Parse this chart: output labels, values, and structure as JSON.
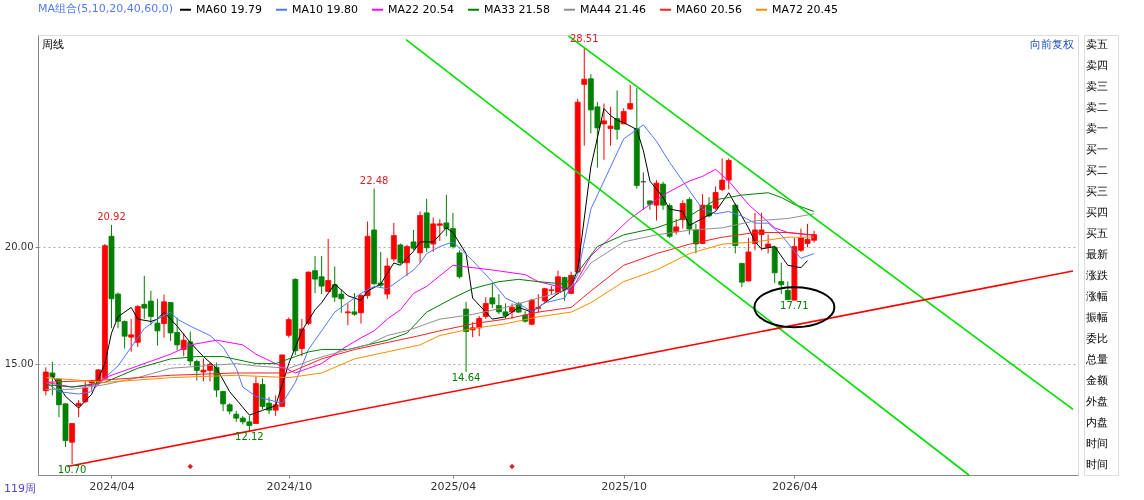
{
  "chart_data": [
    {
      "type": "candlestick",
      "x": [
        "2024-01-26",
        "2024-02-02",
        "2024-02-09",
        "2024-02-16",
        "2024-02-23",
        "2024-03-01",
        "2024-03-08",
        "2024-03-15",
        "2024-03-22",
        "2024-03-29",
        "2024-04-05",
        "2024-04-12",
        "2024-04-19",
        "2024-04-26",
        "2024-05-03",
        "2024-05-10",
        "2024-05-17",
        "2024-05-24",
        "2024-05-31",
        "2024-06-07",
        "2024-06-14",
        "2024-06-21",
        "2024-06-28",
        "2024-07-05",
        "2024-07-12",
        "2024-07-19",
        "2024-07-26",
        "2024-08-02",
        "2024-08-09",
        "2024-08-16",
        "2024-08-23",
        "2024-08-30",
        "2024-09-06",
        "2024-09-13",
        "2024-09-20",
        "2024-09-27",
        "2024-10-04",
        "2024-10-11",
        "2024-10-18",
        "2024-10-25",
        "2024-11-01",
        "2024-11-08",
        "2024-11-15",
        "2024-11-22",
        "2024-11-29",
        "2024-12-06",
        "2024-12-13",
        "2024-12-20",
        "2024-12-27",
        "2025-01-03",
        "2025-01-10",
        "2025-01-17",
        "2025-01-24",
        "2025-01-31",
        "2025-02-07",
        "2025-02-14",
        "2025-02-21",
        "2025-02-28",
        "2025-03-07",
        "2025-03-14",
        "2025-03-21",
        "2025-03-28",
        "2025-04-04",
        "2025-04-11",
        "2025-04-18",
        "2025-04-25",
        "2025-05-02",
        "2025-05-09",
        "2025-05-16",
        "2025-05-23",
        "2025-05-30",
        "2025-06-06",
        "2025-06-13",
        "2025-06-20",
        "2025-06-27",
        "2025-07-04",
        "2025-07-11",
        "2025-07-18",
        "2025-07-25",
        "2025-08-01",
        "2025-08-08",
        "2025-08-15",
        "2025-08-22",
        "2025-08-29",
        "2025-09-05",
        "2025-09-12",
        "2025-09-19",
        "2025-09-26",
        "2025-10-03",
        "2025-10-10",
        "2025-10-17",
        "2025-10-24",
        "2025-10-31",
        "2025-11-07",
        "2025-11-14",
        "2025-11-21",
        "2025-11-28",
        "2025-12-05",
        "2025-12-12",
        "2025-12-19",
        "2025-12-26",
        "2026-01-02",
        "2026-01-09",
        "2026-01-16",
        "2026-01-23",
        "2026-01-30",
        "2026-02-06",
        "2026-02-13",
        "2026-02-20",
        "2026-02-27",
        "2026-03-06",
        "2026-03-13",
        "2026-03-20",
        "2026-03-27",
        "2026-04-03",
        "2026-04-10",
        "2026-04-17",
        "2026-04-24"
      ],
      "ohlc": [
        [
          13.84,
          14.84,
          13.64,
          14.64
        ],
        [
          14.6,
          15.07,
          13.64,
          14.44
        ],
        [
          14.33,
          14.37,
          12.71,
          13.24
        ],
        [
          13.28,
          13.3,
          11.44,
          11.71
        ],
        [
          11.64,
          12.44,
          10.7,
          12.44
        ],
        [
          13.2,
          13.44,
          12.71,
          13.3
        ],
        [
          13.37,
          14.24,
          13.31,
          13.95
        ],
        [
          14.17,
          14.31,
          13.84,
          14.24
        ],
        [
          14.21,
          14.77,
          14.17,
          14.73
        ],
        [
          14.37,
          20.11,
          14.31,
          20.04
        ],
        [
          20.44,
          20.92,
          16.51,
          17.77
        ],
        [
          17.97,
          18.04,
          16.51,
          16.81
        ],
        [
          16.8,
          16.84,
          15.64,
          16.17
        ],
        [
          16.13,
          16.91,
          15.51,
          16.23
        ],
        [
          15.91,
          17.5,
          15.71,
          17.44
        ],
        [
          17.53,
          18.75,
          16.91,
          17.37
        ],
        [
          17.67,
          18.11,
          16.64,
          17.01
        ],
        [
          16.73,
          17.77,
          15.77,
          16.4
        ],
        [
          16.71,
          17.95,
          16.11,
          17.64
        ],
        [
          17.61,
          17.63,
          15.97,
          16.31
        ],
        [
          16.33,
          16.97,
          15.57,
          15.8
        ],
        [
          15.6,
          16.31,
          15.31,
          16.0
        ],
        [
          15.93,
          16.37,
          14.91,
          15.11
        ],
        [
          15.09,
          15.17,
          14.27,
          14.71
        ],
        [
          14.64,
          15.21,
          14.24,
          14.72
        ],
        [
          14.71,
          15.04,
          14.24,
          14.97
        ],
        [
          14.84,
          15.04,
          13.57,
          13.87
        ],
        [
          13.81,
          13.84,
          12.97,
          13.28
        ],
        [
          13.24,
          13.31,
          12.84,
          12.97
        ],
        [
          12.84,
          12.97,
          12.51,
          12.67
        ],
        [
          12.67,
          12.77,
          12.4,
          12.51
        ],
        [
          12.51,
          12.77,
          12.12,
          12.35
        ],
        [
          12.44,
          14.44,
          12.44,
          14.15
        ],
        [
          14.11,
          14.37,
          13.04,
          13.17
        ],
        [
          13.31,
          13.57,
          12.84,
          13.01
        ],
        [
          13.01,
          13.64,
          12.77,
          13.24
        ],
        [
          13.17,
          15.37,
          13.17,
          15.37
        ],
        [
          16.21,
          16.97,
          16.11,
          16.88
        ],
        [
          18.6,
          18.64,
          15.37,
          15.55
        ],
        [
          15.64,
          16.91,
          15.31,
          16.48
        ],
        [
          16.71,
          18.93,
          16.64,
          18.91
        ],
        [
          18.97,
          19.6,
          18.01,
          18.61
        ],
        [
          18.71,
          19.6,
          17.97,
          18.31
        ],
        [
          18.08,
          20.33,
          18.08,
          18.55
        ],
        [
          18.37,
          19.15,
          17.64,
          17.84
        ],
        [
          17.97,
          18.17,
          17.17,
          17.77
        ],
        [
          17.17,
          17.57,
          16.64,
          17.21
        ],
        [
          17.21,
          18.01,
          17.04,
          17.11
        ],
        [
          17.17,
          17.97,
          16.71,
          17.91
        ],
        [
          17.91,
          21.07,
          17.77,
          20.44
        ],
        [
          20.71,
          22.48,
          18.37,
          18.41
        ],
        [
          18.44,
          19.77,
          18.24,
          18.35
        ],
        [
          17.97,
          19.51,
          17.75,
          19.17
        ],
        [
          19.47,
          21.01,
          19.37,
          20.47
        ],
        [
          20.07,
          20.13,
          19.24,
          19.31
        ],
        [
          19.31,
          20.08,
          18.75,
          20.0
        ],
        [
          20.2,
          20.71,
          19.84,
          19.93
        ],
        [
          19.73,
          21.5,
          19.31,
          21.33
        ],
        [
          21.44,
          22.04,
          19.77,
          19.95
        ],
        [
          20.11,
          21.24,
          19.77,
          20.97
        ],
        [
          20.91,
          21.17,
          20.24,
          20.97
        ],
        [
          21.01,
          22.21,
          20.44,
          20.77
        ],
        [
          20.77,
          21.44,
          19.91,
          20.0
        ],
        [
          19.73,
          19.84,
          18.64,
          18.71
        ],
        [
          17.33,
          17.64,
          14.64,
          16.37
        ],
        [
          16.44,
          16.77,
          16.13,
          16.53
        ],
        [
          16.53,
          17.04,
          16.17,
          16.93
        ],
        [
          17.01,
          17.84,
          16.91,
          17.57
        ],
        [
          17.81,
          18.44,
          17.37,
          17.55
        ],
        [
          17.48,
          17.97,
          17.11,
          17.21
        ],
        [
          17.21,
          17.57,
          16.91,
          17.04
        ],
        [
          17.21,
          17.57,
          16.91,
          17.41
        ],
        [
          17.57,
          17.64,
          17.17,
          17.2
        ],
        [
          17.07,
          17.24,
          16.75,
          16.81
        ],
        [
          16.68,
          17.77,
          16.64,
          17.71
        ],
        [
          17.36,
          17.97,
          17.17,
          17.4
        ],
        [
          17.68,
          18.24,
          17.57,
          18.2
        ],
        [
          18.12,
          18.31,
          17.95,
          18.15
        ],
        [
          18.04,
          18.97,
          17.97,
          18.71
        ],
        [
          18.68,
          18.71,
          17.68,
          18.17
        ],
        [
          18.0,
          18.93,
          17.97,
          18.77
        ],
        [
          18.91,
          26.31,
          18.84,
          26.17
        ],
        [
          26.93,
          28.51,
          24.31,
          27.15
        ],
        [
          27.17,
          27.37,
          24.84,
          25.84
        ],
        [
          25.97,
          26.17,
          23.37,
          25.07
        ],
        [
          25.24,
          26.11,
          23.71,
          25.37
        ],
        [
          25.04,
          25.97,
          24.31,
          25.15
        ],
        [
          25.47,
          26.67,
          24.57,
          25.01
        ],
        [
          25.24,
          25.91,
          25.24,
          25.77
        ],
        [
          25.88,
          26.91,
          25.84,
          26.11
        ],
        [
          25.04,
          26.77,
          22.48,
          22.61
        ],
        [
          22.77,
          23.17,
          21.57,
          22.77
        ],
        [
          21.95,
          21.97,
          21.57,
          21.81
        ],
        [
          21.77,
          22.84,
          21.11,
          22.71
        ],
        [
          22.67,
          22.77,
          21.57,
          21.77
        ],
        [
          21.75,
          21.84,
          20.37,
          20.44
        ],
        [
          20.64,
          21.17,
          20.51,
          20.84
        ],
        [
          21.15,
          21.97,
          20.77,
          21.84
        ],
        [
          22.01,
          22.11,
          20.51,
          20.75
        ],
        [
          20.71,
          20.97,
          19.71,
          20.11
        ],
        [
          20.13,
          22.24,
          20.11,
          21.77
        ],
        [
          21.75,
          22.11,
          21.24,
          21.31
        ],
        [
          21.64,
          22.57,
          21.57,
          22.31
        ],
        [
          22.44,
          23.77,
          22.37,
          22.84
        ],
        [
          22.84,
          23.77,
          22.44,
          23.68
        ],
        [
          21.77,
          21.84,
          19.71,
          20.04
        ],
        [
          19.28,
          19.31,
          18.27,
          18.48
        ],
        [
          18.53,
          20.37,
          18.51,
          19.77
        ],
        [
          20.13,
          21.44,
          19.84,
          20.71
        ],
        [
          20.51,
          21.44,
          19.84,
          20.71
        ],
        [
          19.97,
          20.51,
          19.71,
          20.11
        ],
        [
          19.97,
          20.04,
          18.44,
          18.88
        ],
        [
          18.51,
          19.31,
          17.97,
          18.37
        ],
        [
          18.13,
          18.51,
          17.72,
          17.73
        ],
        [
          17.71,
          20.37,
          17.71,
          20.0
        ],
        [
          19.84,
          20.77,
          19.77,
          20.37
        ],
        [
          20.13,
          20.97,
          19.97,
          20.31
        ],
        [
          20.27,
          20.67,
          20.17,
          20.51
        ]
      ],
      "colors": [
        "#ff0000",
        "#008000",
        "#008000",
        "#008000",
        "#ff0000",
        "#ff0000",
        "#ff0000",
        "#ff0000",
        "#ff0000",
        "#ff0000",
        "#008000",
        "#008000",
        "#008000",
        "#ff0000",
        "#ff0000",
        "#008000",
        "#008000",
        "#008000",
        "#ff0000",
        "#008000",
        "#008000",
        "#ff0000",
        "#008000",
        "#008000",
        "#ff0000",
        "#ff0000",
        "#008000",
        "#008000",
        "#008000",
        "#008000",
        "#008000",
        "#008000",
        "#ff0000",
        "#008000",
        "#008000",
        "#ff0000",
        "#ff0000",
        "#ff0000",
        "#008000",
        "#ff0000",
        "#ff0000",
        "#008000",
        "#008000",
        "#ff0000",
        "#008000",
        "#008000",
        "#ff0000",
        "#008000",
        "#ff0000",
        "#ff0000",
        "#008000",
        "#008000",
        "#ff0000",
        "#ff0000",
        "#008000",
        "#ff0000",
        "#008000",
        "#ff0000",
        "#008000",
        "#ff0000",
        "#ff0000",
        "#008000",
        "#008000",
        "#008000",
        "#008000",
        "#ff0000",
        "#ff0000",
        "#ff0000",
        "#008000",
        "#008000",
        "#008000",
        "#ff0000",
        "#008000",
        "#008000",
        "#ff0000",
        "#ff0000",
        "#ff0000",
        "#ff0000",
        "#ff0000",
        "#008000",
        "#ff0000",
        "#ff0000",
        "#ff0000",
        "#008000",
        "#008000",
        "#ff0000",
        "#ff0000",
        "#008000",
        "#ff0000",
        "#ff0000",
        "#008000",
        "#404040",
        "#008000",
        "#ff0000",
        "#008000",
        "#008000",
        "#ff0000",
        "#ff0000",
        "#008000",
        "#008000",
        "#ff0000",
        "#008000",
        "#ff0000",
        "#ff0000",
        "#ff0000",
        "#008000",
        "#008000",
        "#ff0000",
        "#ff0000",
        "#ff0000",
        "#ff0000",
        "#008000",
        "#008000",
        "#008000",
        "#ff0000",
        "#ff0000",
        "#ff0000",
        "#ff0000"
      ],
      "series": [
        {
          "name": "MA60 19.79",
          "type": "line",
          "color": "#000000",
          "x": [
            "2024-02-02",
            "2024-02-16",
            "2024-03-01",
            "2024-03-15",
            "2024-03-29",
            "2024-04-05",
            "2024-04-12",
            "2024-04-26",
            "2024-05-03",
            "2024-05-17",
            "2024-05-24",
            "2024-05-31",
            "2024-06-14",
            "2024-06-28",
            "2024-07-12",
            "2024-07-26",
            "2024-08-02",
            "2024-08-09",
            "2024-08-30",
            "2024-09-13",
            "2024-09-27",
            "2024-10-11",
            "2024-10-25",
            "2024-11-08",
            "2024-11-15",
            "2024-11-29",
            "2024-12-13",
            "2024-12-27",
            "2025-01-03",
            "2025-01-17",
            "2025-01-31",
            "2025-02-07",
            "2025-02-21",
            "2025-02-28",
            "2025-03-14",
            "2025-03-28",
            "2025-04-04",
            "2025-04-18",
            "2025-04-25",
            "2025-05-16",
            "2025-05-30",
            "2025-06-13",
            "2025-06-27",
            "2025-07-11",
            "2025-07-25",
            "2025-08-08",
            "2025-08-15",
            "2025-08-29",
            "2025-09-12",
            "2025-09-19",
            "2025-09-26",
            "2025-10-03",
            "2025-10-17",
            "2025-10-24",
            "2025-10-31",
            "2025-11-14",
            "2025-11-21",
            "2025-12-05",
            "2025-12-12",
            "2025-12-26",
            "2026-01-09",
            "2026-01-23",
            "2026-01-30",
            "2026-02-13",
            "2026-02-20",
            "2026-02-27",
            "2026-03-13",
            "2026-03-27",
            "2026-04-10",
            "2026-04-17"
          ],
          "values": [
            14.5,
            13.6,
            13.1,
            13.7,
            15.0,
            16.3,
            17.0,
            17.4,
            16.9,
            16.8,
            16.9,
            17.2,
            16.6,
            15.9,
            15.3,
            14.8,
            14.3,
            13.8,
            12.8,
            13.0,
            13.2,
            15.0,
            16.4,
            17.3,
            17.6,
            18.4,
            17.9,
            17.7,
            18.1,
            18.4,
            19.3,
            19.2,
            19.8,
            20.2,
            20.2,
            20.8,
            20.6,
            19.7,
            17.8,
            16.9,
            17.0,
            17.4,
            17.2,
            17.6,
            18.0,
            18.3,
            19.0,
            23.4,
            25.9,
            25.6,
            25.4,
            25.3,
            25.0,
            24.1,
            22.8,
            22.1,
            21.6,
            21.5,
            20.9,
            21.2,
            21.5,
            22.3,
            21.8,
            20.8,
            20.2,
            19.9,
            20.0,
            19.2,
            19.1,
            19.4
          ]
        },
        {
          "name": "MA10 19.80",
          "type": "line",
          "color": "#4f79ff",
          "x": [
            "2024-01-26",
            "2024-02-09",
            "2024-03-01",
            "2024-03-15",
            "2024-03-29",
            "2024-04-12",
            "2024-04-26",
            "2024-05-10",
            "2024-05-24",
            "2024-06-07",
            "2024-06-14",
            "2024-06-28",
            "2024-07-19",
            "2024-08-02",
            "2024-08-16",
            "2024-08-23",
            "2024-09-06",
            "2024-10-04",
            "2024-10-18",
            "2024-11-01",
            "2024-11-15",
            "2024-11-29",
            "2024-12-13",
            "2024-12-27",
            "2025-01-10",
            "2025-01-24",
            "2025-02-07",
            "2025-02-21",
            "2025-02-28",
            "2025-03-07",
            "2025-03-21",
            "2025-04-04",
            "2025-04-25",
            "2025-05-16",
            "2025-05-30",
            "2025-06-20",
            "2025-06-27",
            "2025-07-11",
            "2025-08-01",
            "2025-08-15",
            "2025-08-29",
            "2025-09-19",
            "2025-10-03",
            "2025-10-24",
            "2025-11-07",
            "2025-11-21",
            "2025-12-12",
            "2025-12-26",
            "2026-01-09",
            "2026-01-23",
            "2026-02-06",
            "2026-02-20",
            "2026-03-06",
            "2026-03-20",
            "2026-04-03",
            "2026-04-10",
            "2026-04-24"
          ],
          "values": [
            14.2,
            13.8,
            13.7,
            13.8,
            14.4,
            14.9,
            15.7,
            16.5,
            16.9,
            17.2,
            16.9,
            16.6,
            16.2,
            15.7,
            14.8,
            14.0,
            13.6,
            13.3,
            14.2,
            15.6,
            16.4,
            17.2,
            17.6,
            18.0,
            18.3,
            18.2,
            18.6,
            19.0,
            19.3,
            19.7,
            20.0,
            20.2,
            19.4,
            18.5,
            17.8,
            17.4,
            17.2,
            17.6,
            17.8,
            18.8,
            21.6,
            23.4,
            24.6,
            25.2,
            24.5,
            23.6,
            22.4,
            21.6,
            21.4,
            21.5,
            21.3,
            21.0,
            21.0,
            20.5,
            19.8,
            19.5,
            19.7
          ]
        },
        {
          "name": "MA22 20.54",
          "type": "line",
          "color": "#ff00ff",
          "x": [
            "2024-01-26",
            "2024-02-23",
            "2024-03-22",
            "2024-03-29",
            "2024-05-03",
            "2024-06-07",
            "2024-06-28",
            "2024-07-26",
            "2024-08-23",
            "2024-09-06",
            "2024-09-27",
            "2024-10-18",
            "2024-11-01",
            "2024-11-15",
            "2024-12-06",
            "2024-12-27",
            "2025-01-10",
            "2025-01-24",
            "2025-02-07",
            "2025-02-21",
            "2025-03-07",
            "2025-04-04",
            "2025-04-25",
            "2025-05-16",
            "2025-06-20",
            "2025-07-04",
            "2025-07-25",
            "2025-08-08",
            "2025-08-29",
            "2025-09-19",
            "2025-10-10",
            "2025-10-24",
            "2025-11-14",
            "2025-12-12",
            "2025-12-26",
            "2026-01-09",
            "2026-01-23",
            "2026-02-13",
            "2026-02-27",
            "2026-03-13",
            "2026-03-27",
            "2026-04-17",
            "2026-04-24"
          ],
          "values": [
            14.2,
            14.0,
            14.1,
            14.4,
            14.9,
            15.4,
            15.8,
            16.0,
            15.8,
            15.4,
            15.0,
            14.6,
            14.8,
            15.0,
            15.6,
            16.1,
            16.4,
            16.9,
            17.3,
            18.0,
            18.3,
            19.2,
            19.1,
            19.0,
            18.8,
            18.5,
            18.3,
            18.1,
            19.6,
            20.4,
            21.2,
            21.6,
            22.2,
            22.8,
            23.0,
            23.3,
            22.8,
            21.8,
            21.3,
            20.8,
            20.6,
            20.5,
            20.5
          ]
        },
        {
          "name": "MA33 21.58",
          "type": "line",
          "color": "#008000",
          "x": [
            "2024-01-26",
            "2024-02-23",
            "2024-03-29",
            "2024-05-03",
            "2024-06-07",
            "2024-07-05",
            "2024-08-02",
            "2024-09-06",
            "2024-09-27",
            "2024-10-18",
            "2024-11-01",
            "2024-11-15",
            "2024-12-13",
            "2025-01-03",
            "2025-01-24",
            "2025-02-14",
            "2025-03-07",
            "2025-04-04",
            "2025-04-25",
            "2025-05-23",
            "2025-06-13",
            "2025-07-04",
            "2025-08-01",
            "2025-08-15",
            "2025-09-05",
            "2025-10-03",
            "2025-11-07",
            "2025-12-12",
            "2026-01-09",
            "2026-02-06",
            "2026-03-06",
            "2026-03-20",
            "2026-04-03",
            "2026-04-24"
          ],
          "values": [
            14.1,
            14.0,
            14.2,
            14.8,
            15.2,
            15.3,
            15.3,
            15.0,
            15.0,
            15.3,
            15.5,
            15.6,
            15.6,
            15.8,
            16.0,
            16.3,
            17.2,
            17.8,
            18.2,
            18.5,
            18.6,
            18.5,
            18.4,
            18.9,
            20.0,
            20.5,
            20.8,
            21.3,
            22.0,
            22.2,
            22.3,
            22.1,
            21.8,
            21.5
          ]
        },
        {
          "name": "MA44 21.46",
          "type": "line",
          "color": "#909090",
          "x": [
            "2024-01-26",
            "2024-02-23",
            "2024-03-29",
            "2024-05-03",
            "2024-06-07",
            "2024-07-12",
            "2024-08-16",
            "2024-09-06",
            "2024-10-11",
            "2024-11-08",
            "2024-12-13",
            "2025-01-03",
            "2025-01-24",
            "2025-02-14",
            "2025-03-21",
            "2025-04-25",
            "2025-05-30",
            "2025-07-04",
            "2025-08-01",
            "2025-08-15",
            "2025-08-29",
            "2025-10-03",
            "2025-11-07",
            "2025-12-12",
            "2026-01-16",
            "2026-02-20",
            "2026-03-27",
            "2026-04-24"
          ],
          "values": [
            13.9,
            13.9,
            14.1,
            14.4,
            14.8,
            14.9,
            15.0,
            14.9,
            14.8,
            15.2,
            15.6,
            15.8,
            16.2,
            16.4,
            16.9,
            17.1,
            17.4,
            17.8,
            18.1,
            18.5,
            19.3,
            20.2,
            20.5,
            20.7,
            20.8,
            21.1,
            21.2,
            21.4
          ]
        },
        {
          "name": "MA60 20.56",
          "type": "line",
          "color": "#ff2020",
          "x": [
            "2024-01-26",
            "2024-03-29",
            "2024-06-07",
            "2024-08-16",
            "2024-10-11",
            "2024-11-15",
            "2024-12-20",
            "2025-01-24",
            "2025-02-28",
            "2025-03-21",
            "2025-04-25",
            "2025-05-30",
            "2025-07-04",
            "2025-08-08",
            "2025-08-29",
            "2025-10-03",
            "2025-11-07",
            "2025-12-12",
            "2026-01-16",
            "2026-02-20",
            "2026-03-27",
            "2026-04-24"
          ],
          "values": [
            14.2,
            14.3,
            14.5,
            14.6,
            14.6,
            15.2,
            15.6,
            15.9,
            16.2,
            16.4,
            16.7,
            16.9,
            17.2,
            17.4,
            18.1,
            19.2,
            19.7,
            20.1,
            20.4,
            20.6,
            20.6,
            20.5
          ]
        },
        {
          "name": "MA72 20.45",
          "type": "line",
          "color": "#ff8c00",
          "x": [
            "2024-01-26",
            "2024-03-29",
            "2024-06-07",
            "2024-08-16",
            "2024-10-11",
            "2024-11-15",
            "2024-12-20",
            "2025-01-24",
            "2025-02-28",
            "2025-03-21",
            "2025-04-25",
            "2025-05-30",
            "2025-07-04",
            "2025-08-08",
            "2025-08-29",
            "2025-10-03",
            "2025-11-07",
            "2025-12-12",
            "2026-01-16",
            "2026-02-20",
            "2026-03-27",
            "2026-04-24"
          ],
          "values": [
            14.4,
            14.2,
            14.4,
            14.5,
            14.4,
            14.6,
            15.2,
            15.5,
            15.8,
            16.2,
            16.5,
            16.7,
            17.0,
            17.2,
            17.6,
            18.5,
            19.0,
            19.7,
            20.1,
            20.2,
            20.4,
            20.4
          ]
        },
        {
          "type": "line",
          "color": "#00dd00",
          "x": [
            "2025-02-13",
            "2026-10-06"
          ],
          "values": [
            28.84,
            10.24
          ]
        },
        {
          "type": "line",
          "color": "#00dd00",
          "x": [
            "2025-08-05",
            "2027-01-25"
          ],
          "values": [
            29.0,
            13.04
          ]
        },
        {
          "type": "line",
          "color": "#ff0000",
          "x": [
            "2024-02-18",
            "2027-01-25"
          ],
          "values": [
            10.6,
            18.96
          ]
        },
        {
          "type": "scatter",
          "marker": "diamond",
          "color": "#e02020",
          "x": [
            "2024-06-28",
            "2025-06-06"
          ],
          "values": [
            10.6,
            10.6
          ]
        }
      ],
      "xlim": [
        "2024-01-23",
        "2027-01-25"
      ],
      "xticks": [
        {
          "value": "2024-04-05",
          "label": "2024/04"
        },
        {
          "value": "2024-10-11",
          "label": "2024/10"
        },
        {
          "value": "2025-04-04",
          "label": "2025/04"
        },
        {
          "value": "2025-10-03",
          "label": "2025/10"
        },
        {
          "value": "2026-04-03",
          "label": "2026/04"
        }
      ],
      "ylim": [
        10.24,
        29.04
      ],
      "yticks": [
        {
          "value": 15,
          "label": "15.00"
        },
        {
          "value": 20,
          "label": "20.00"
        }
      ],
      "grid": "y",
      "legend": "top left",
      "legend_title": "MA组合(5,10,20,40,60,0)",
      "annotations": [
        "周线",
        "向前复权",
        "119周",
        {
          "text": "28.51",
          "x": "2025-08-22",
          "y": 28.51
        },
        {
          "text": "22.48",
          "x": "2025-01-10",
          "y": 22.48
        },
        {
          "text": "20.92",
          "x": "2024-04-05",
          "y": 20.92
        },
        {
          "text": "14.64",
          "x": "2025-04-18",
          "y": 14.64
        },
        {
          "text": "12.12",
          "x": "2024-08-30",
          "y": 12.12
        },
        {
          "text": "10.70",
          "x": "2024-02-23",
          "y": 10.7
        },
        {
          "text": "17.71",
          "x": "2026-04-03",
          "y": 17.71
        }
      ]
    },
    {
      "type": "other",
      "annotations": [
        "卖五",
        "卖四",
        "卖三",
        "卖二",
        "卖一",
        "买一",
        "买二",
        "买三",
        "买四",
        "买五",
        "最新",
        "涨跌",
        "涨幅",
        "振幅",
        "委比",
        "总量",
        "金额",
        "外盘",
        "内盘",
        "时间",
        "时间"
      ]
    }
  ]
}
